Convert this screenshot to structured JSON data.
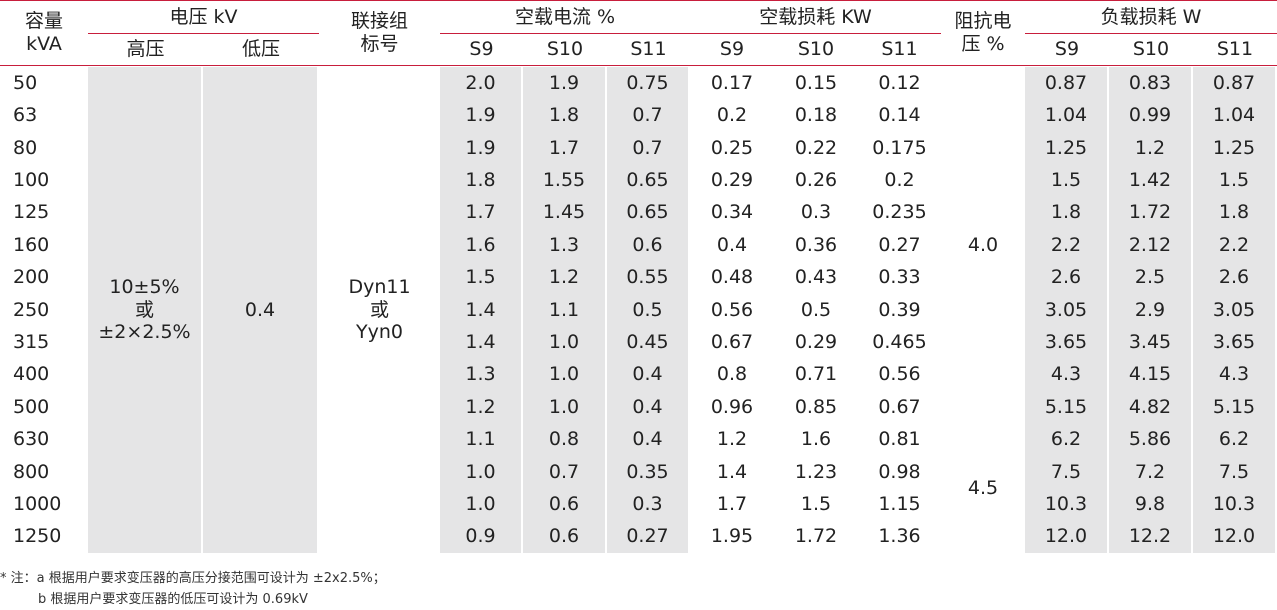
{
  "header": {
    "capacity": [
      "容量",
      "kVA"
    ],
    "voltage": "电压 kV",
    "high_voltage": "高压",
    "low_voltage": "低压",
    "connection": [
      "联接组",
      "标号"
    ],
    "noload_current": "空载电流 %",
    "noload_loss": "空载损耗 KW",
    "impedance": [
      "阻抗电",
      "压 %"
    ],
    "load_loss": "负载损耗 W",
    "series_labels": [
      "S9",
      "S10",
      "S11"
    ]
  },
  "merged": {
    "high_voltage": [
      "10±5%",
      "或",
      "±2×2.5%"
    ],
    "low_voltage": "0.4",
    "connection": [
      "Dyn11",
      "或",
      "Yyn0"
    ],
    "impedance_1": "4.0",
    "impedance_2": "4.5"
  },
  "rows": [
    {
      "capacity": "50",
      "noload_current": [
        "2.0",
        "1.9",
        "0.75"
      ],
      "noload_loss": [
        "0.17",
        "0.15",
        "0.12"
      ],
      "load_loss": [
        "0.87",
        "0.83",
        "0.87"
      ]
    },
    {
      "capacity": "63",
      "noload_current": [
        "1.9",
        "1.8",
        "0.7"
      ],
      "noload_loss": [
        "0.2",
        "0.18",
        "0.14"
      ],
      "load_loss": [
        "1.04",
        "0.99",
        "1.04"
      ]
    },
    {
      "capacity": "80",
      "noload_current": [
        "1.9",
        "1.7",
        "0.7"
      ],
      "noload_loss": [
        "0.25",
        "0.22",
        "0.175"
      ],
      "load_loss": [
        "1.25",
        "1.2",
        "1.25"
      ]
    },
    {
      "capacity": "100",
      "noload_current": [
        "1.8",
        "1.55",
        "0.65"
      ],
      "noload_loss": [
        "0.29",
        "0.26",
        "0.2"
      ],
      "load_loss": [
        "1.5",
        "1.42",
        "1.5"
      ]
    },
    {
      "capacity": "125",
      "noload_current": [
        "1.7",
        "1.45",
        "0.65"
      ],
      "noload_loss": [
        "0.34",
        "0.3",
        "0.235"
      ],
      "load_loss": [
        "1.8",
        "1.72",
        "1.8"
      ]
    },
    {
      "capacity": "160",
      "noload_current": [
        "1.6",
        "1.3",
        "0.6"
      ],
      "noload_loss": [
        "0.4",
        "0.36",
        "0.27"
      ],
      "load_loss": [
        "2.2",
        "2.12",
        "2.2"
      ]
    },
    {
      "capacity": "200",
      "noload_current": [
        "1.5",
        "1.2",
        "0.55"
      ],
      "noload_loss": [
        "0.48",
        "0.43",
        "0.33"
      ],
      "load_loss": [
        "2.6",
        "2.5",
        "2.6"
      ]
    },
    {
      "capacity": "250",
      "noload_current": [
        "1.4",
        "1.1",
        "0.5"
      ],
      "noload_loss": [
        "0.56",
        "0.5",
        "0.39"
      ],
      "load_loss": [
        "3.05",
        "2.9",
        "3.05"
      ]
    },
    {
      "capacity": "315",
      "noload_current": [
        "1.4",
        "1.0",
        "0.45"
      ],
      "noload_loss": [
        "0.67",
        "0.29",
        "0.465"
      ],
      "load_loss": [
        "3.65",
        "3.45",
        "3.65"
      ]
    },
    {
      "capacity": "400",
      "noload_current": [
        "1.3",
        "1.0",
        "0.4"
      ],
      "noload_loss": [
        "0.8",
        "0.71",
        "0.56"
      ],
      "load_loss": [
        "4.3",
        "4.15",
        "4.3"
      ]
    },
    {
      "capacity": "500",
      "noload_current": [
        "1.2",
        "1.0",
        "0.4"
      ],
      "noload_loss": [
        "0.96",
        "0.85",
        "0.67"
      ],
      "load_loss": [
        "5.15",
        "4.82",
        "5.15"
      ]
    },
    {
      "capacity": "630",
      "noload_current": [
        "1.1",
        "0.8",
        "0.4"
      ],
      "noload_loss": [
        "1.2",
        "1.6",
        "0.81"
      ],
      "load_loss": [
        "6.2",
        "5.86",
        "6.2"
      ]
    },
    {
      "capacity": "800",
      "noload_current": [
        "1.0",
        "0.7",
        "0.35"
      ],
      "noload_loss": [
        "1.4",
        "1.23",
        "0.98"
      ],
      "load_loss": [
        "7.5",
        "7.2",
        "7.5"
      ]
    },
    {
      "capacity": "1000",
      "noload_current": [
        "1.0",
        "0.6",
        "0.3"
      ],
      "noload_loss": [
        "1.7",
        "1.5",
        "1.15"
      ],
      "load_loss": [
        "10.3",
        "9.8",
        "10.3"
      ]
    },
    {
      "capacity": "1250",
      "noload_current": [
        "0.9",
        "0.6",
        "0.27"
      ],
      "noload_loss": [
        "1.95",
        "1.72",
        "1.36"
      ],
      "load_loss": [
        "12.0",
        "12.2",
        "12.0"
      ]
    }
  ],
  "notes": [
    "* 注：a 根据用户要求变压器的高压分接范围可设计为 ±2x2.5%；",
    "b 根据用户要求变压器的低压可设计为 0.69kV"
  ],
  "colors": {
    "accent": "#c81e3c",
    "grey_cell": "#e5e5e6",
    "text": "#222222"
  }
}
